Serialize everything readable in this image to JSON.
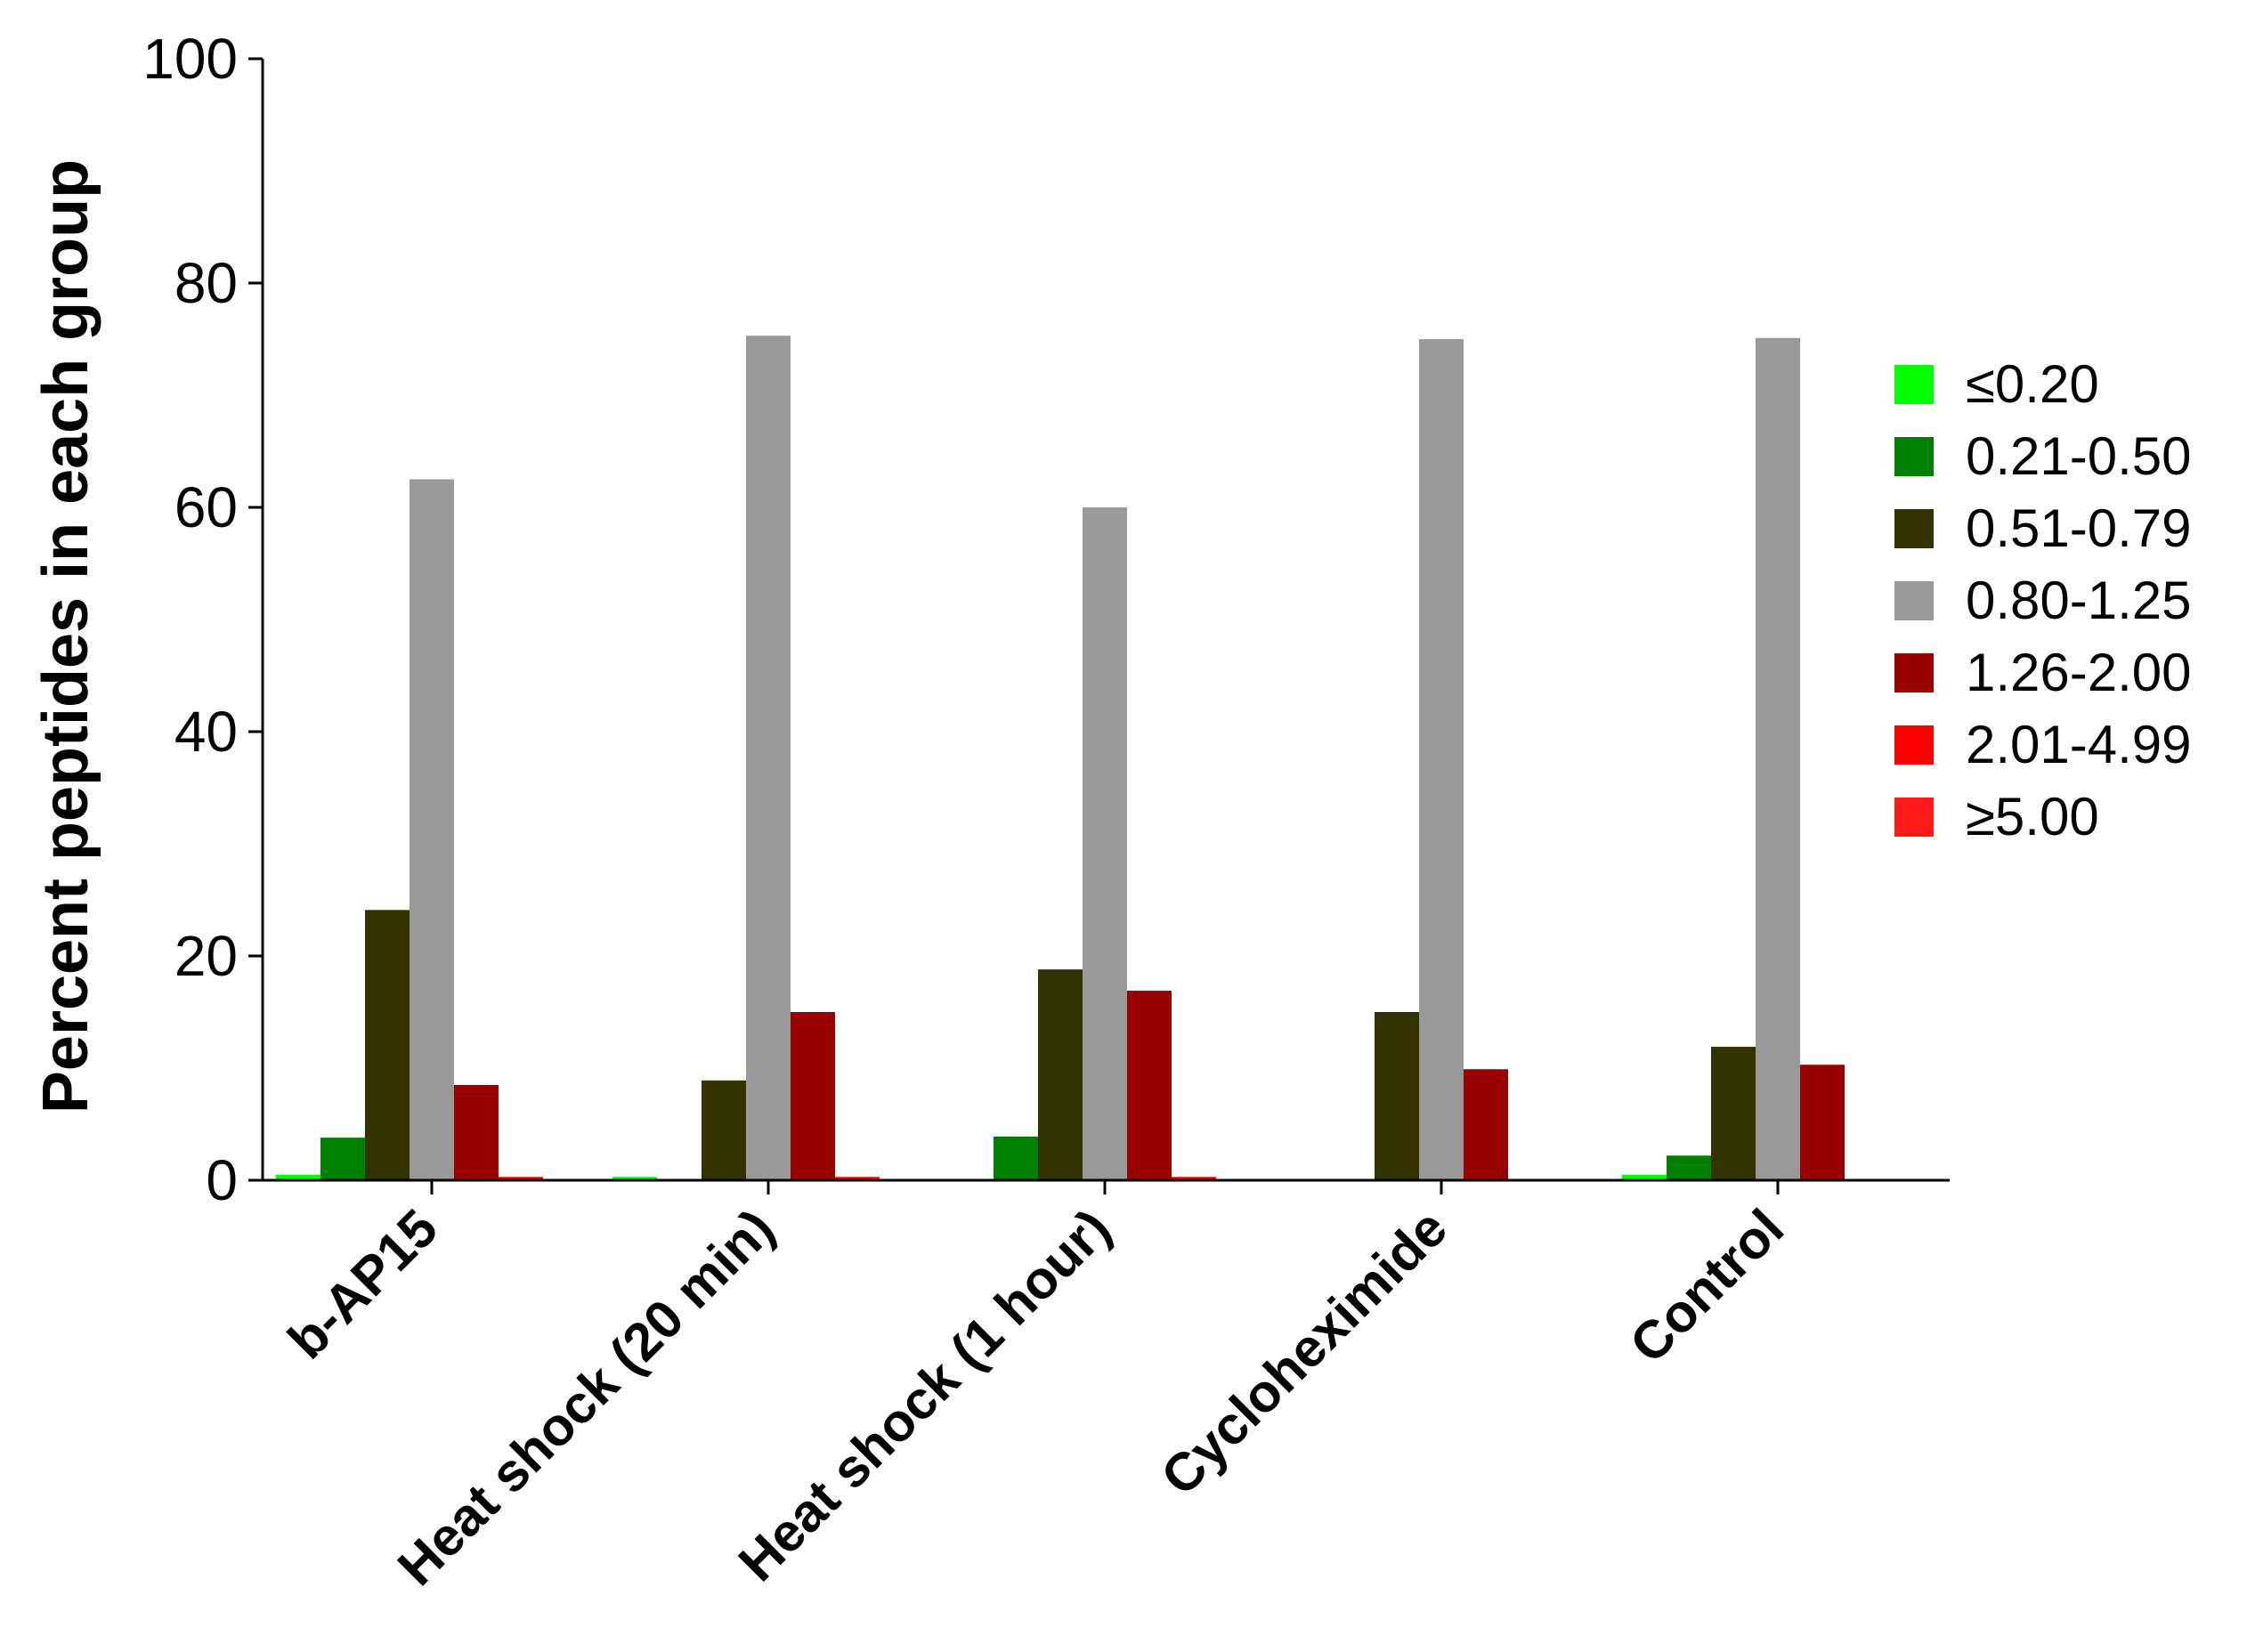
{
  "chart_data": {
    "type": "bar",
    "title": "",
    "xlabel": "",
    "ylabel": "Percent peptides in each group",
    "ylim": [
      0,
      100
    ],
    "yticks": [
      "0",
      "20",
      "40",
      "60",
      "80",
      "100"
    ],
    "grid": false,
    "legend_position": "right",
    "categories": [
      "b-AP15",
      "Heat shock (20 min)",
      "Heat shock (1 hour)",
      "Cycloheximide",
      "Control"
    ],
    "series": [
      {
        "name": "≤0.20",
        "color": "#00ff00",
        "values": [
          0.5,
          0.3,
          0,
          0,
          0.5
        ]
      },
      {
        "name": "0.21-0.50",
        "color": "#008000",
        "values": [
          3.8,
          0,
          3.9,
          0,
          2.2
        ]
      },
      {
        "name": "0.51-0.79",
        "color": "#333300",
        "values": [
          24.1,
          8.9,
          18.8,
          15.0,
          11.9
        ]
      },
      {
        "name": "0.80-1.25",
        "color": "#999999",
        "values": [
          62.5,
          75.3,
          60.0,
          75.0,
          75.1
        ]
      },
      {
        "name": "1.26-2.00",
        "color": "#990000",
        "values": [
          8.5,
          15.0,
          16.9,
          9.9,
          10.3
        ]
      },
      {
        "name": "2.01-4.99",
        "color": "#ff0000",
        "values": [
          0.3,
          0.3,
          0.3,
          0,
          0
        ]
      },
      {
        "name": "≥5.00",
        "color": "#ff1a1a",
        "values": [
          0,
          0,
          0,
          0,
          0
        ]
      }
    ]
  }
}
